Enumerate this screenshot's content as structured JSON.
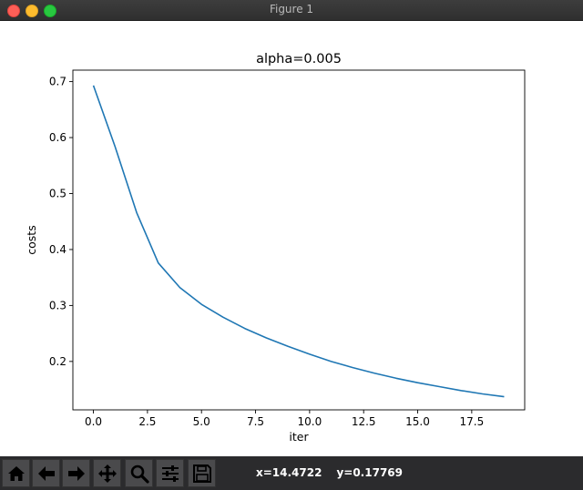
{
  "window": {
    "title": "Figure 1"
  },
  "toolbar": {
    "buttons": [
      {
        "name": "home",
        "icon": "home-icon"
      },
      {
        "name": "back",
        "icon": "arrow-left-icon"
      },
      {
        "name": "forward",
        "icon": "arrow-right-icon"
      },
      {
        "name": "pan",
        "icon": "move-icon"
      },
      {
        "name": "zoom",
        "icon": "magnifier-icon"
      },
      {
        "name": "configure-subplots",
        "icon": "sliders-icon"
      },
      {
        "name": "save",
        "icon": "floppy-disk-icon"
      }
    ],
    "coord_x": "x=14.4722",
    "coord_y": "y=0.17769"
  },
  "chart_data": {
    "type": "line",
    "title": "alpha=0.005",
    "xlabel": "iter",
    "ylabel": "costs",
    "xlim": [
      -0.95,
      19.95
    ],
    "ylim": [
      0.1135,
      0.7205
    ],
    "xticks": [
      0,
      2.5,
      5,
      7.5,
      10,
      12.5,
      15,
      17.5
    ],
    "xtick_labels": [
      "0.0",
      "2.5",
      "5.0",
      "7.5",
      "10.0",
      "12.5",
      "15.0",
      "17.5"
    ],
    "yticks": [
      0.2,
      0.3,
      0.4,
      0.5,
      0.6,
      0.7
    ],
    "ytick_labels": [
      "0.2",
      "0.3",
      "0.4",
      "0.5",
      "0.6",
      "0.7"
    ],
    "grid": false,
    "series": [
      {
        "color": "#1f77b4",
        "x": [
          0,
          1,
          2,
          3,
          4,
          5,
          6,
          7,
          8,
          9,
          10,
          11,
          12,
          13,
          14,
          15,
          16,
          17,
          18,
          19
        ],
        "y": [
          0.693,
          0.584,
          0.466,
          0.376,
          0.332,
          0.302,
          0.279,
          0.259,
          0.242,
          0.227,
          0.213,
          0.2,
          0.189,
          0.179,
          0.17,
          0.162,
          0.155,
          0.148,
          0.142,
          0.137
        ]
      }
    ]
  }
}
